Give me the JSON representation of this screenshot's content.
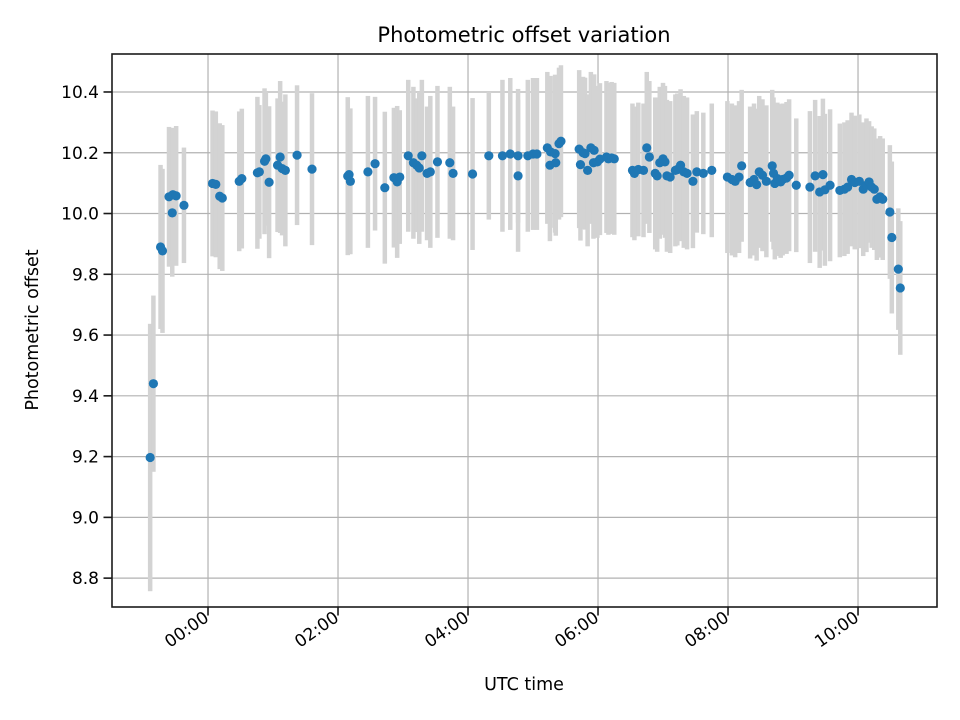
{
  "chart_data": {
    "type": "scatter",
    "title": "Photometric offset variation",
    "xlabel": "UTC time",
    "ylabel": "Photometric offset",
    "x_tick_labels": [
      "00:00",
      "02:00",
      "04:00",
      "06:00",
      "08:00",
      "10:00"
    ],
    "x_tick_hours": [
      0,
      2,
      4,
      6,
      8,
      10
    ],
    "y_ticks": [
      8.8,
      9.0,
      9.2,
      9.4,
      9.6,
      9.8,
      10.0,
      10.2,
      10.4
    ],
    "xlim_hours": [
      -1.477,
      11.215
    ],
    "ylim": [
      8.705,
      10.525
    ],
    "grid": true,
    "legend": "none",
    "colors": {
      "marker": "#1f77b4",
      "errorbar": "#d3d3d3",
      "grid": "#b2b2b2",
      "spine": "#1a1a1a",
      "background": "#ffffff"
    },
    "points": [
      [
        -0.89,
        9.197,
        0.44
      ],
      [
        -0.84,
        9.44,
        0.29
      ],
      [
        -0.73,
        9.89,
        0.27
      ],
      [
        -0.7,
        9.877,
        0.27
      ],
      [
        -0.6,
        10.055,
        0.23
      ],
      [
        -0.55,
        10.002,
        0.21
      ],
      [
        -0.54,
        10.062,
        0.22
      ],
      [
        -0.49,
        10.058,
        0.23
      ],
      [
        -0.37,
        10.027,
        0.19
      ],
      [
        0.07,
        10.099,
        0.24
      ],
      [
        0.12,
        10.096,
        0.24
      ],
      [
        0.18,
        10.057,
        0.24
      ],
      [
        0.22,
        10.051,
        0.24
      ],
      [
        0.48,
        10.106,
        0.23
      ],
      [
        0.52,
        10.115,
        0.23
      ],
      [
        0.76,
        10.134,
        0.25
      ],
      [
        0.79,
        10.137,
        0.22
      ],
      [
        0.87,
        10.172,
        0.24
      ],
      [
        0.89,
        10.18,
        0.22
      ],
      [
        0.94,
        10.103,
        0.25
      ],
      [
        1.07,
        10.159,
        0.22
      ],
      [
        1.11,
        10.186,
        0.25
      ],
      [
        1.14,
        10.148,
        0.22
      ],
      [
        1.19,
        10.142,
        0.25
      ],
      [
        1.37,
        10.192,
        0.23
      ],
      [
        1.6,
        10.146,
        0.25
      ],
      [
        2.15,
        10.123,
        0.26
      ],
      [
        2.17,
        10.128,
        0.21
      ],
      [
        2.19,
        10.106,
        0.24
      ],
      [
        2.46,
        10.137,
        0.25
      ],
      [
        2.57,
        10.164,
        0.22
      ],
      [
        2.72,
        10.085,
        0.25
      ],
      [
        2.86,
        10.118,
        0.23
      ],
      [
        2.91,
        10.104,
        0.25
      ],
      [
        2.95,
        10.12,
        0.22
      ],
      [
        3.08,
        10.19,
        0.25
      ],
      [
        3.16,
        10.167,
        0.25
      ],
      [
        3.21,
        10.159,
        0.22
      ],
      [
        3.25,
        10.15,
        0.25
      ],
      [
        3.29,
        10.19,
        0.25
      ],
      [
        3.37,
        10.132,
        0.22
      ],
      [
        3.42,
        10.137,
        0.25
      ],
      [
        3.53,
        10.17,
        0.25
      ],
      [
        3.72,
        10.167,
        0.25
      ],
      [
        3.77,
        10.132,
        0.22
      ],
      [
        4.07,
        10.13,
        0.25
      ],
      [
        4.32,
        10.19,
        0.21
      ],
      [
        4.53,
        10.19,
        0.25
      ],
      [
        4.65,
        10.196,
        0.25
      ],
      [
        4.77,
        10.19,
        0.22
      ],
      [
        4.77,
        10.124,
        0.25
      ],
      [
        4.92,
        10.19,
        0.25
      ],
      [
        5.0,
        10.196,
        0.25
      ],
      [
        5.06,
        10.196,
        0.25
      ],
      [
        5.22,
        10.216,
        0.25
      ],
      [
        5.26,
        10.159,
        0.25
      ],
      [
        5.27,
        10.203,
        0.25
      ],
      [
        5.34,
        10.197,
        0.26
      ],
      [
        5.35,
        10.167,
        0.24
      ],
      [
        5.4,
        10.23,
        0.25
      ],
      [
        5.43,
        10.238,
        0.25
      ],
      [
        5.71,
        10.212,
        0.26
      ],
      [
        5.73,
        10.161,
        0.25
      ],
      [
        5.77,
        10.2,
        0.25
      ],
      [
        5.8,
        10.197,
        0.25
      ],
      [
        5.84,
        10.142,
        0.25
      ],
      [
        5.89,
        10.216,
        0.25
      ],
      [
        5.93,
        10.167,
        0.25
      ],
      [
        5.94,
        10.208,
        0.25
      ],
      [
        5.99,
        10.17,
        0.25
      ],
      [
        6.03,
        10.179,
        0.25
      ],
      [
        6.13,
        10.186,
        0.25
      ],
      [
        6.16,
        10.18,
        0.25
      ],
      [
        6.21,
        10.183,
        0.25
      ],
      [
        6.25,
        10.18,
        0.25
      ],
      [
        6.53,
        10.142,
        0.22
      ],
      [
        6.56,
        10.132,
        0.22
      ],
      [
        6.62,
        10.145,
        0.22
      ],
      [
        6.7,
        10.142,
        0.22
      ],
      [
        6.75,
        10.216,
        0.25
      ],
      [
        6.79,
        10.186,
        0.25
      ],
      [
        6.88,
        10.132,
        0.25
      ],
      [
        6.91,
        10.124,
        0.25
      ],
      [
        6.95,
        10.167,
        0.25
      ],
      [
        7.0,
        10.18,
        0.25
      ],
      [
        7.03,
        10.17,
        0.25
      ],
      [
        7.06,
        10.124,
        0.25
      ],
      [
        7.11,
        10.12,
        0.25
      ],
      [
        7.19,
        10.142,
        0.25
      ],
      [
        7.22,
        10.145,
        0.25
      ],
      [
        7.27,
        10.159,
        0.25
      ],
      [
        7.32,
        10.137,
        0.25
      ],
      [
        7.37,
        10.132,
        0.25
      ],
      [
        7.46,
        10.106,
        0.22
      ],
      [
        7.52,
        10.137,
        0.2
      ],
      [
        7.62,
        10.132,
        0.2
      ],
      [
        7.75,
        10.142,
        0.22
      ],
      [
        7.99,
        10.12,
        0.25
      ],
      [
        8.06,
        10.112,
        0.25
      ],
      [
        8.11,
        10.106,
        0.25
      ],
      [
        8.17,
        10.12,
        0.25
      ],
      [
        8.21,
        10.157,
        0.25
      ],
      [
        8.34,
        10.102,
        0.25
      ],
      [
        8.4,
        10.112,
        0.25
      ],
      [
        8.44,
        10.095,
        0.25
      ],
      [
        8.48,
        10.137,
        0.25
      ],
      [
        8.53,
        10.126,
        0.25
      ],
      [
        8.59,
        10.106,
        0.25
      ],
      [
        8.68,
        10.157,
        0.25
      ],
      [
        8.7,
        10.132,
        0.25
      ],
      [
        8.72,
        10.099,
        0.25
      ],
      [
        8.76,
        10.115,
        0.25
      ],
      [
        8.79,
        10.11,
        0.25
      ],
      [
        8.81,
        10.104,
        0.25
      ],
      [
        8.84,
        10.112,
        0.25
      ],
      [
        8.9,
        10.117,
        0.25
      ],
      [
        8.94,
        10.126,
        0.25
      ],
      [
        9.05,
        10.093,
        0.22
      ],
      [
        9.26,
        10.087,
        0.25
      ],
      [
        9.34,
        10.124,
        0.25
      ],
      [
        9.41,
        10.071,
        0.25
      ],
      [
        9.46,
        10.128,
        0.25
      ],
      [
        9.49,
        10.078,
        0.25
      ],
      [
        9.57,
        10.093,
        0.25
      ],
      [
        9.72,
        10.076,
        0.22
      ],
      [
        9.79,
        10.08,
        0.22
      ],
      [
        9.84,
        10.087,
        0.22
      ],
      [
        9.9,
        10.112,
        0.22
      ],
      [
        9.95,
        10.102,
        0.22
      ],
      [
        10.02,
        10.106,
        0.22
      ],
      [
        10.08,
        10.08,
        0.22
      ],
      [
        10.13,
        10.093,
        0.22
      ],
      [
        10.17,
        10.104,
        0.2
      ],
      [
        10.21,
        10.087,
        0.2
      ],
      [
        10.25,
        10.08,
        0.2
      ],
      [
        10.29,
        10.047,
        0.2
      ],
      [
        10.34,
        10.055,
        0.2
      ],
      [
        10.38,
        10.047,
        0.2
      ],
      [
        10.49,
        10.005,
        0.22
      ],
      [
        10.52,
        9.921,
        0.25
      ],
      [
        10.62,
        9.817,
        0.2
      ],
      [
        10.65,
        9.755,
        0.22
      ]
    ]
  }
}
